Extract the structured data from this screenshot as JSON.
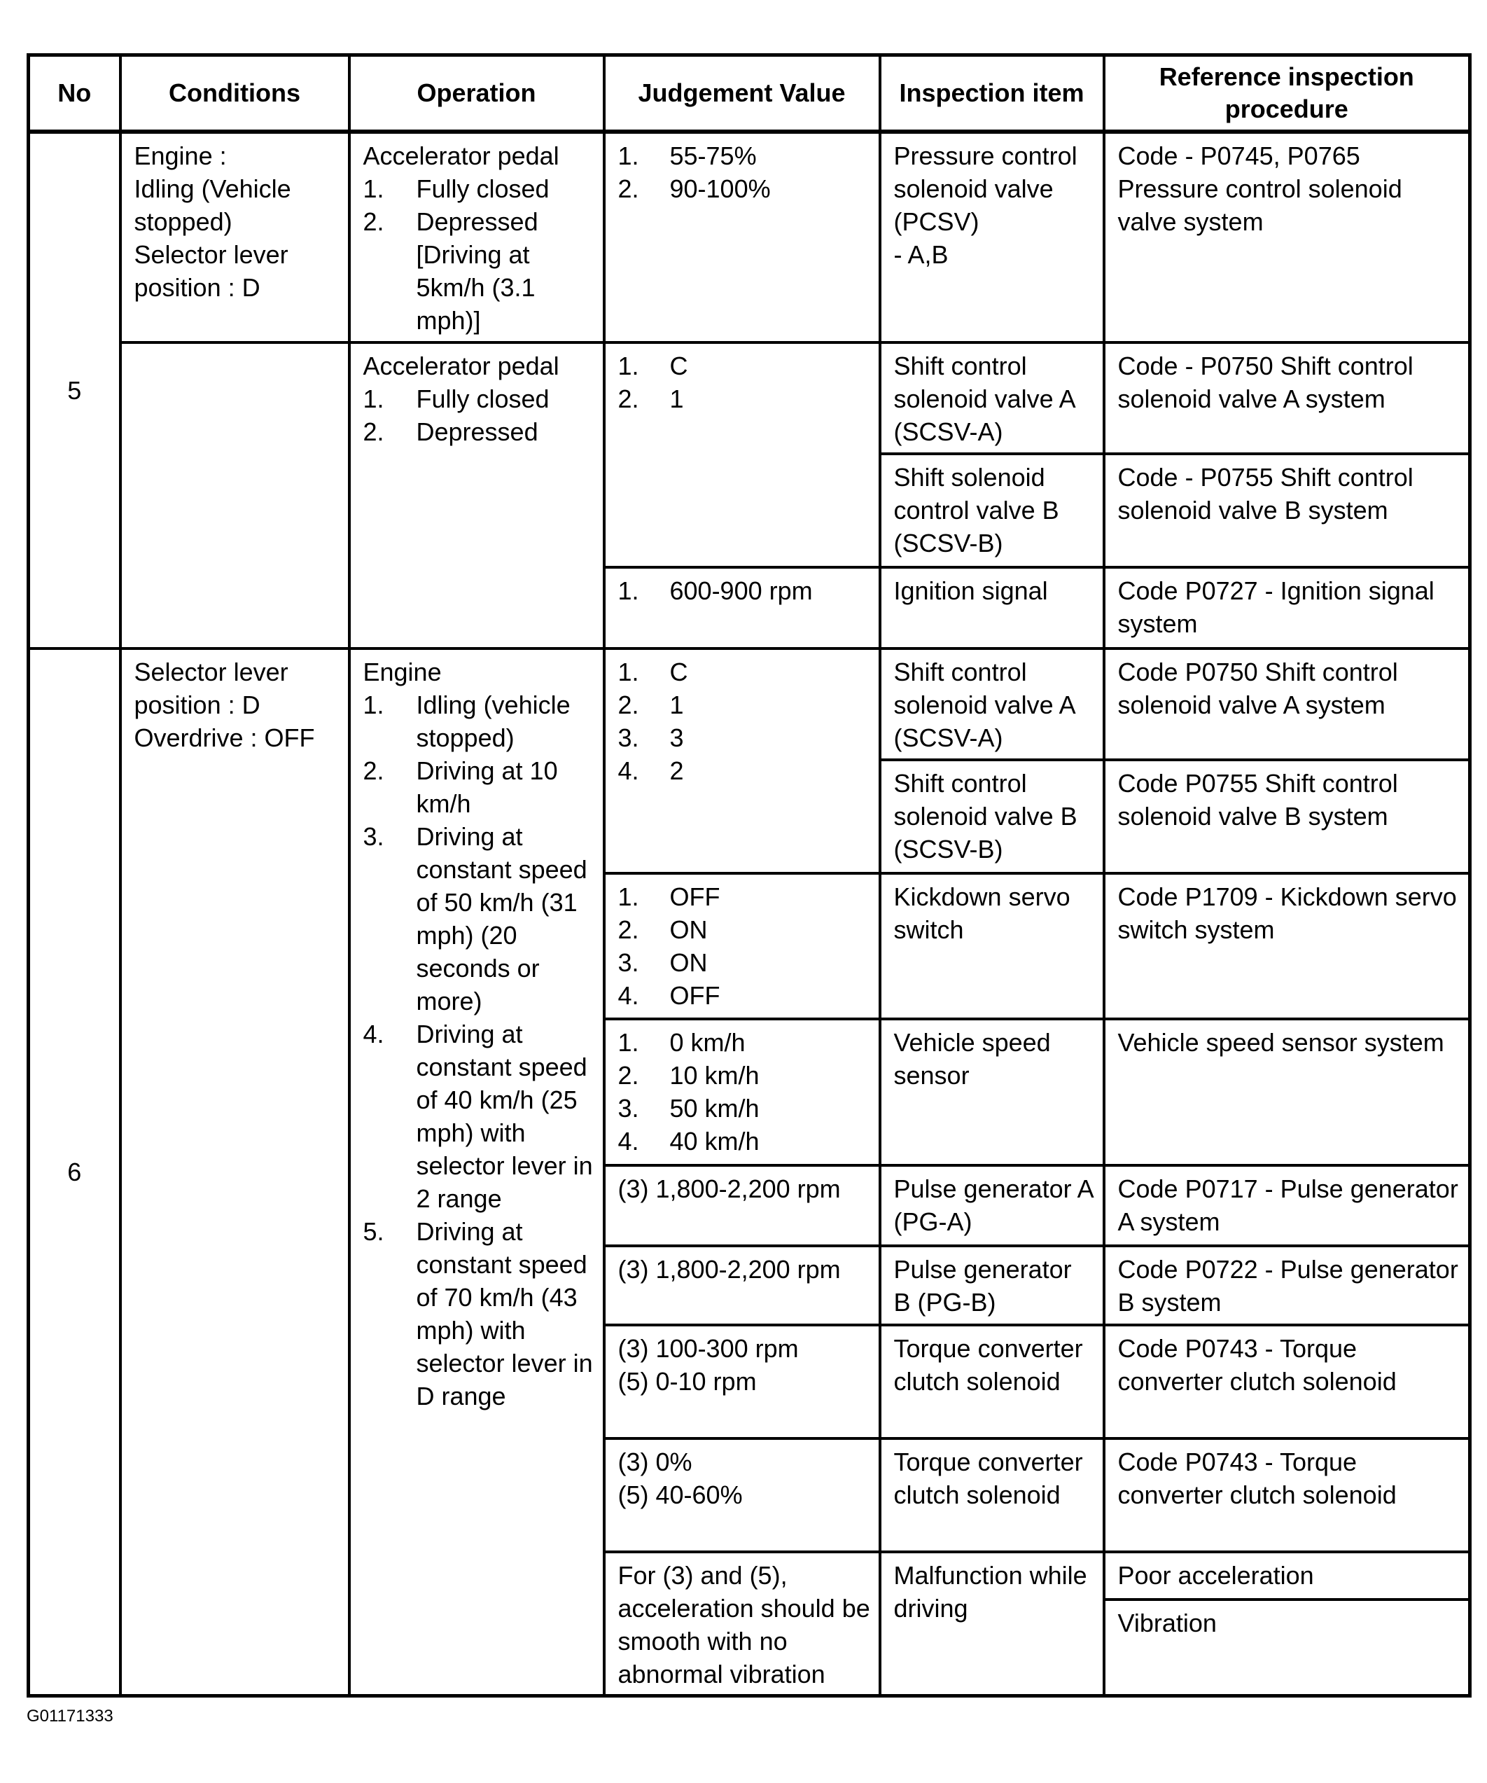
{
  "table": {
    "header": [
      "No",
      "Conditions",
      "Operation",
      "Judgement Value",
      "Inspection item",
      "Reference inspection procedure"
    ],
    "no": [
      "5",
      "6"
    ],
    "conditions": [
      {
        "lines": [
          "Engine :",
          "Idling (Vehicle stopped)",
          "Selector lever position : D"
        ]
      },
      {
        "lines": []
      },
      {
        "lines": [
          "Selector lever position : D",
          "Overdrive : OFF"
        ]
      }
    ],
    "operation": [
      {
        "title": "Accelerator pedal",
        "items": [
          {
            "n": "1.",
            "t": "Fully closed"
          },
          {
            "n": "2.",
            "t": "Depressed [Driving at 5km/h (3.1 mph)]"
          }
        ]
      },
      {
        "title": "Accelerator pedal",
        "items": [
          {
            "n": "1.",
            "t": "Fully closed"
          },
          {
            "n": "2.",
            "t": "Depressed"
          }
        ]
      },
      {
        "title": "Engine",
        "items": [
          {
            "n": "1.",
            "t": "Idling (vehicle stopped)"
          },
          {
            "n": "2.",
            "t": "Driving at 10 km/h"
          },
          {
            "n": "3.",
            "t": "Driving at constant speed of 50 km/h (31 mph) (20 seconds or more)"
          },
          {
            "n": "4.",
            "t": "Driving at constant speed of 40 km/h (25 mph) with selector lever in 2 range"
          },
          {
            "n": "5.",
            "t": "Driving at constant speed of 70 km/h (43 mph) with selector lever in D range"
          }
        ]
      }
    ],
    "judgement": [
      {
        "items": [
          {
            "n": "1.",
            "t": "55-75%"
          },
          {
            "n": "2.",
            "t": "90-100%"
          }
        ]
      },
      {
        "items": [
          {
            "n": "1.",
            "t": "C"
          },
          {
            "n": "2.",
            "t": "1"
          }
        ]
      },
      {
        "items": [
          {
            "n": "1.",
            "t": "600-900 rpm"
          }
        ]
      },
      {
        "items": [
          {
            "n": "1.",
            "t": "C"
          },
          {
            "n": "2.",
            "t": "1"
          },
          {
            "n": "3.",
            "t": "3"
          },
          {
            "n": "4.",
            "t": "2"
          }
        ]
      },
      {
        "items": [
          {
            "n": "1.",
            "t": "OFF"
          },
          {
            "n": "2.",
            "t": "ON"
          },
          {
            "n": "3.",
            "t": "ON"
          },
          {
            "n": "4.",
            "t": "OFF"
          }
        ]
      },
      {
        "items": [
          {
            "n": "1.",
            "t": "0 km/h"
          },
          {
            "n": "2.",
            "t": "10 km/h"
          },
          {
            "n": "3.",
            "t": "50 km/h"
          },
          {
            "n": "4.",
            "t": "40 km/h"
          }
        ]
      },
      {
        "lines": [
          "(3) 1,800-2,200 rpm"
        ]
      },
      {
        "lines": [
          "(3) 1,800-2,200 rpm"
        ]
      },
      {
        "lines": [
          "(3) 100-300 rpm",
          "(5) 0-10 rpm"
        ]
      },
      {
        "lines": [
          "(3) 0%",
          "(5) 40-60%"
        ]
      },
      {
        "lines": [
          "For (3) and (5), acceleration should be smooth with no abnormal vibration"
        ]
      }
    ],
    "inspection": [
      {
        "lines": [
          "Pressure control solenoid valve (PCSV)",
          "- A,B"
        ]
      },
      {
        "lines": [
          "Shift control solenoid valve A (SCSV-A)"
        ]
      },
      {
        "lines": [
          "Shift solenoid control valve B (SCSV-B)"
        ]
      },
      {
        "lines": [
          "Ignition signal"
        ]
      },
      {
        "lines": [
          "Shift control solenoid valve A (SCSV-A)"
        ]
      },
      {
        "lines": [
          "Shift control solenoid valve B (SCSV-B)"
        ]
      },
      {
        "lines": [
          "Kickdown servo switch"
        ]
      },
      {
        "lines": [
          "Vehicle speed sensor"
        ]
      },
      {
        "lines": [
          "Pulse generator A (PG-A)"
        ]
      },
      {
        "lines": [
          "Pulse generator B (PG-B)"
        ]
      },
      {
        "lines": [
          "Torque converter clutch solenoid"
        ]
      },
      {
        "lines": [
          "Torque converter clutch solenoid"
        ]
      },
      {
        "lines": [
          "Malfunction while driving"
        ]
      }
    ],
    "reference": [
      {
        "lines": [
          "Code - P0745, P0765 Pressure control solenoid valve system"
        ]
      },
      {
        "lines": [
          "Code - P0750 Shift control solenoid valve A system"
        ]
      },
      {
        "lines": [
          "Code - P0755 Shift control solenoid valve B system"
        ]
      },
      {
        "lines": [
          "Code P0727 - Ignition signal system"
        ]
      },
      {
        "lines": [
          "Code P0750 Shift control solenoid valve A system"
        ]
      },
      {
        "lines": [
          "Code P0755 Shift control solenoid valve B system"
        ]
      },
      {
        "lines": [
          "Code P1709 - Kickdown servo switch system"
        ]
      },
      {
        "lines": [
          "Vehicle speed sensor system"
        ]
      },
      {
        "lines": [
          "Code P0717 - Pulse generator A system"
        ]
      },
      {
        "lines": [
          "Code P0722 - Pulse generator B system"
        ]
      },
      {
        "lines": [
          "Code P0743 - Torque converter clutch solenoid"
        ]
      },
      {
        "lines": [
          "Code P0743 - Torque converter clutch solenoid"
        ]
      },
      {
        "lines": [
          "Poor acceleration"
        ]
      },
      {
        "lines": [
          "Vibration"
        ]
      }
    ]
  },
  "footer": {
    "figure_id": "G01171333"
  }
}
